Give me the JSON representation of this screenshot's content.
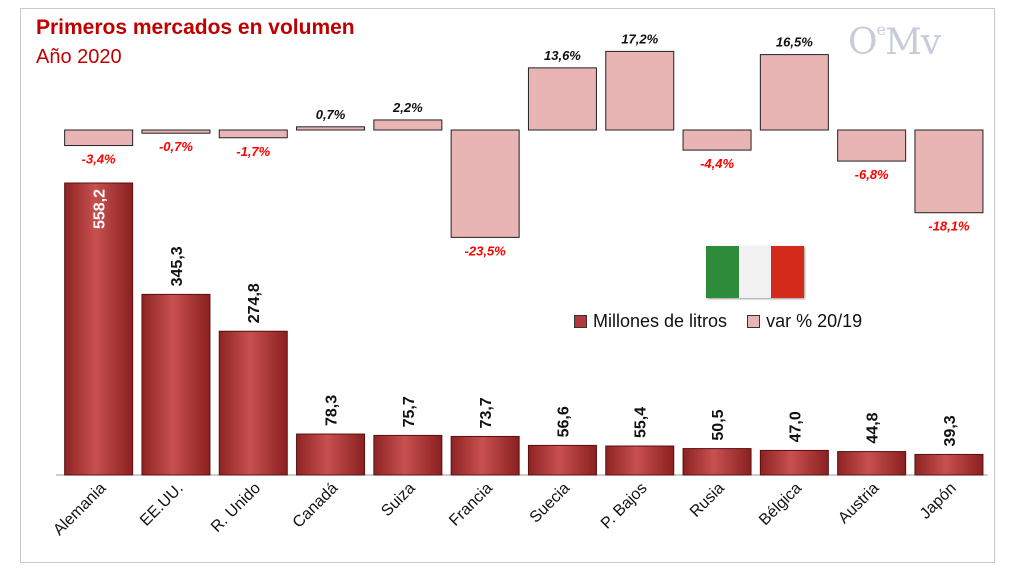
{
  "chart_data": {
    "type": "bar",
    "title": "Primeros mercados en volumen",
    "subtitle": "Año 2020",
    "categories": [
      "Alemania",
      "EE.UU.",
      "R. Unido",
      "Canadá",
      "Suiza",
      "Francia",
      "Suecia",
      "P. Bajos",
      "Rusia",
      "Bélgica",
      "Austria",
      "Japón"
    ],
    "series": [
      {
        "name": "Millones de litros",
        "values": [
          558.2,
          345.3,
          274.8,
          78.3,
          75.7,
          73.7,
          56.6,
          55.4,
          50.5,
          47.0,
          44.8,
          39.3
        ],
        "labels": [
          "558,2",
          "345,3",
          "274,8",
          "78,3",
          "75,7",
          "73,7",
          "56,6",
          "55,4",
          "50,5",
          "47,0",
          "44,8",
          "39,3"
        ]
      },
      {
        "name": "var % 20/19",
        "values": [
          -3.4,
          -0.7,
          -1.7,
          0.7,
          2.2,
          -23.5,
          13.6,
          17.2,
          -4.4,
          16.5,
          -6.8,
          -18.1
        ],
        "labels": [
          "-3,4%",
          "-0,7%",
          "-1,7%",
          "0,7%",
          "2,2%",
          "-23,5%",
          "13,6%",
          "17,2%",
          "-4,4%",
          "16,5%",
          "-6,8%",
          "-18,1%"
        ]
      }
    ],
    "legend_position": "middle-right",
    "ylim_volume": [
      0,
      600
    ],
    "ylim_var": [
      -25,
      20
    ]
  },
  "legend": {
    "volume_label": "Millones de litros",
    "var_label": "var % 20/19"
  },
  "logo": {
    "text": "O",
    "sup": "e",
    "tail": "Mv"
  },
  "colors": {
    "title": "#c00000",
    "volume_bar": "#b33a3a",
    "var_bar": "#e8b4b4",
    "var_neg_label": "#ff0000",
    "flag_green": "#2e8b3a",
    "flag_white": "#f2f2f2",
    "flag_red": "#d42a1c"
  }
}
